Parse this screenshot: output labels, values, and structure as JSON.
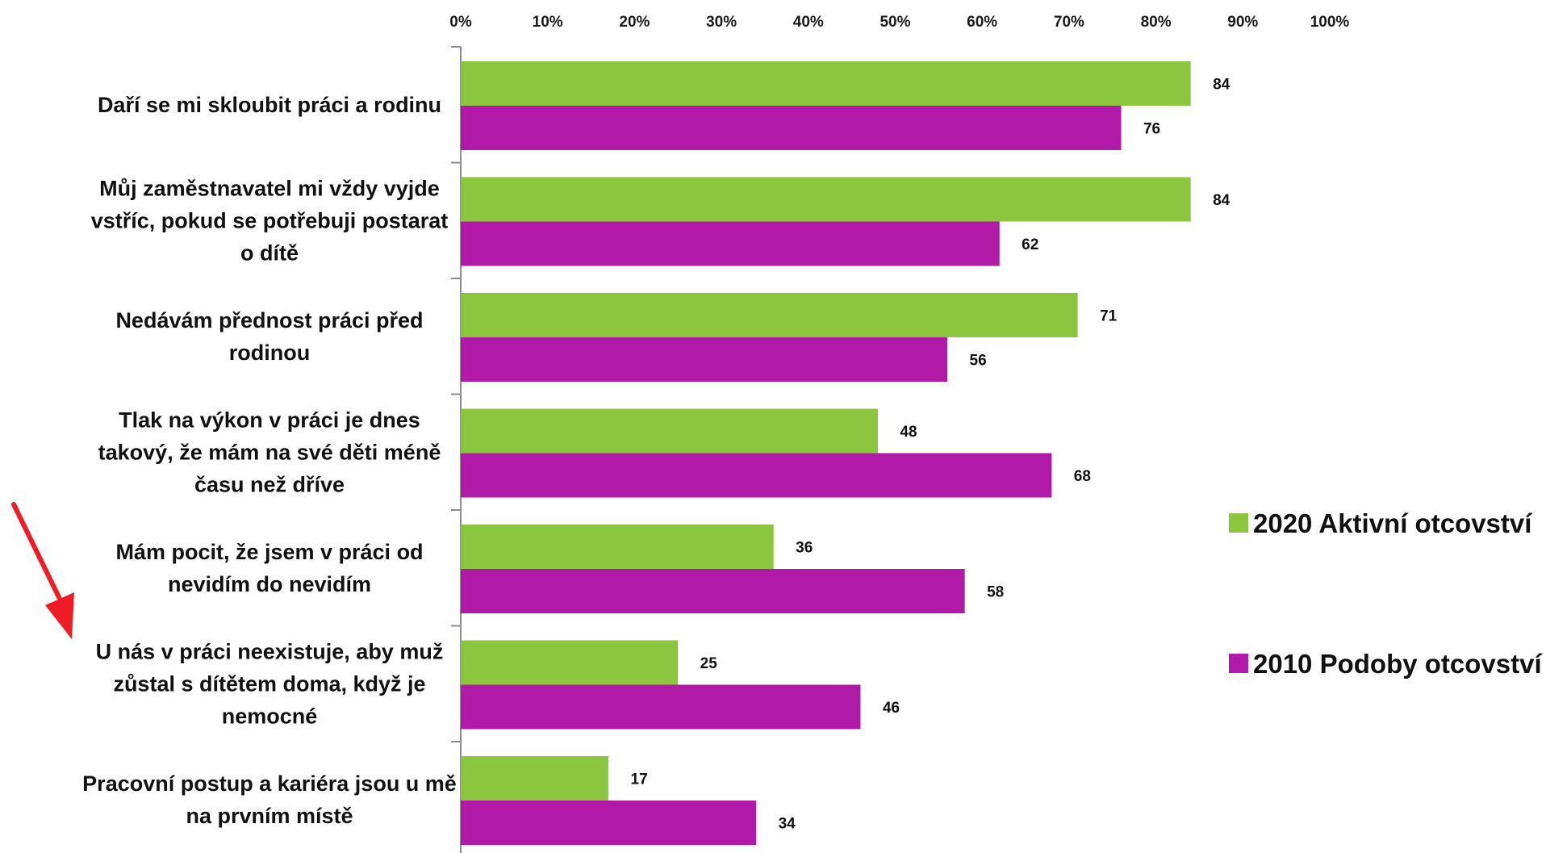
{
  "chart_data": {
    "type": "bar",
    "orientation": "horizontal",
    "x_ticks": [
      "0%",
      "10%",
      "20%",
      "30%",
      "40%",
      "50%",
      "60%",
      "70%",
      "80%",
      "90%",
      "100%"
    ],
    "xlim": [
      0,
      100
    ],
    "x_axis_position": "top",
    "grid": false,
    "legend_position": "right",
    "categories": [
      [
        "Daří se mi skloubit práci a rodinu"
      ],
      [
        "Můj zaměstnavatel mi vždy vyjde",
        "vstříc, pokud se potřebuji postarat",
        "o dítě"
      ],
      [
        "Nedávám přednost práci před",
        "rodinou"
      ],
      [
        "Tlak na výkon v práci je dnes",
        "takový, že mám na své děti méně",
        "času než dříve"
      ],
      [
        "Mám pocit, že jsem v práci od",
        "nevidím do nevidím"
      ],
      [
        "U nás v práci neexistuje, aby muž",
        "zůstal s dítětem doma, když je",
        "nemocné"
      ],
      [
        "Pracovní postup a kariéra jsou u mě",
        "na prvním místě"
      ]
    ],
    "series": [
      {
        "name": "2020 Aktivní otcovství",
        "color": "#8cc63f",
        "values": [
          84,
          84,
          71,
          48,
          36,
          25,
          17
        ]
      },
      {
        "name": "2010 Podoby otcovství",
        "color": "#b01aa7",
        "values": [
          76,
          62,
          56,
          68,
          58,
          46,
          34
        ]
      }
    ],
    "highlight_arrow": {
      "color": "#ee1c24",
      "points_to_category_index": 5
    }
  }
}
